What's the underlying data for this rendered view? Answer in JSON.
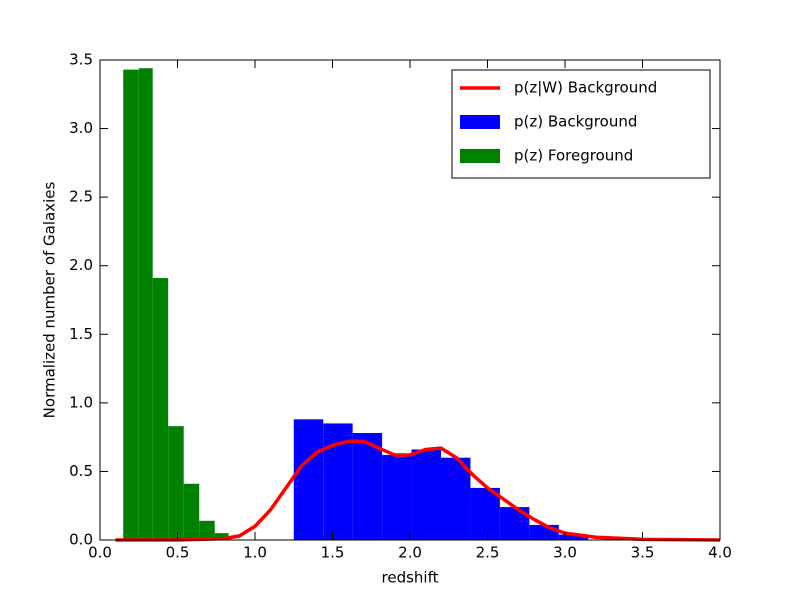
{
  "chart_data": {
    "type": "histogram",
    "xlabel": "redshift",
    "ylabel": "Normalized number of Galaxies",
    "xlim": [
      0,
      4
    ],
    "ylim": [
      0,
      3.5
    ],
    "xticks": [
      {
        "value": 0,
        "label": "0.0"
      },
      {
        "value": 0.5,
        "label": "0.5"
      },
      {
        "value": 1,
        "label": "1.0"
      },
      {
        "value": 1.5,
        "label": "1.5"
      },
      {
        "value": 2,
        "label": "2.0"
      },
      {
        "value": 2.5,
        "label": "2.5"
      },
      {
        "value": 3,
        "label": "3.0"
      },
      {
        "value": 3.5,
        "label": "3.5"
      },
      {
        "value": 4,
        "label": "4.0"
      }
    ],
    "yticks": [
      {
        "value": 0,
        "label": "0.0"
      },
      {
        "value": 0.5,
        "label": "0.5"
      },
      {
        "value": 1,
        "label": "1.0"
      },
      {
        "value": 1.5,
        "label": "1.5"
      },
      {
        "value": 2,
        "label": "2.0"
      },
      {
        "value": 2.5,
        "label": "2.5"
      },
      {
        "value": 3,
        "label": "3.0"
      },
      {
        "value": 3.5,
        "label": "3.5"
      }
    ],
    "grid": false,
    "legend": "upper right",
    "series": [
      {
        "name": "p(z|W) Background",
        "color": "#ff0000",
        "x": [
          0.1,
          0.5,
          0.8,
          0.9,
          1.0,
          1.1,
          1.2,
          1.3,
          1.4,
          1.5,
          1.6,
          1.7,
          1.8,
          1.9,
          2.0,
          2.1,
          2.2,
          2.3,
          2.4,
          2.5,
          2.6,
          2.7,
          2.8,
          2.9,
          3.0,
          3.2,
          3.5,
          4.0
        ],
        "values": [
          0,
          0,
          0.01,
          0.03,
          0.1,
          0.22,
          0.38,
          0.54,
          0.64,
          0.69,
          0.72,
          0.72,
          0.67,
          0.62,
          0.62,
          0.66,
          0.67,
          0.6,
          0.48,
          0.38,
          0.3,
          0.22,
          0.15,
          0.09,
          0.05,
          0.02,
          0.005,
          0
        ]
      },
      {
        "name": "p(z) Background",
        "color": "#0000ff",
        "bins": [
          1.25,
          1.44,
          1.63,
          1.82,
          2.01,
          2.2,
          2.39,
          2.58,
          2.77,
          2.96,
          3.15
        ],
        "values": [
          0.88,
          0.85,
          0.78,
          0.62,
          0.66,
          0.6,
          0.38,
          0.24,
          0.11,
          0.04
        ]
      },
      {
        "name": "p(z) Foreground",
        "color": "#008000",
        "bins": [
          0.15,
          0.25,
          0.34,
          0.44,
          0.54,
          0.64,
          0.74,
          0.83
        ],
        "values": [
          3.43,
          3.44,
          1.91,
          0.83,
          0.41,
          0.14,
          0.05
        ]
      }
    ]
  }
}
